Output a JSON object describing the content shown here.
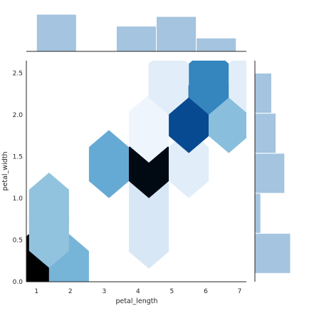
{
  "chart_data": {
    "type": "hexbin-joint",
    "title": "",
    "xlabel": "petal_length",
    "ylabel": "petal_width",
    "xlim": [
      0.7,
      7.2
    ],
    "ylim": [
      0.0,
      2.65
    ],
    "x_ticks": [
      1,
      2,
      3,
      4,
      5,
      6,
      7
    ],
    "y_ticks": [
      0.0,
      0.5,
      1.0,
      1.5,
      2.0,
      2.5
    ],
    "x_tick_labels": [
      "1",
      "2",
      "3",
      "4",
      "5",
      "6",
      "7"
    ],
    "y_tick_labels": [
      "0.0",
      "0.5",
      "1.0",
      "1.5",
      "2.0",
      "2.5"
    ],
    "hexbin": {
      "colormap": "Blues",
      "hex_width_data": 1.18,
      "hex_height_data": 0.815,
      "cells": [
        {
          "x": 0.78,
          "y": 0.165,
          "count": 1.0
        },
        {
          "x": 1.96,
          "y": 0.165,
          "count": 0.42
        },
        {
          "x": 1.37,
          "y": 0.575,
          "count": 0.36
        },
        {
          "x": 1.37,
          "y": 0.9,
          "count": 0.36
        },
        {
          "x": 4.32,
          "y": 0.565,
          "count": 0.14
        },
        {
          "x": 4.32,
          "y": 0.975,
          "count": 0.14
        },
        {
          "x": 3.14,
          "y": 1.41,
          "count": 0.46
        },
        {
          "x": 4.32,
          "y": 1.41,
          "count": 0.98
        },
        {
          "x": 5.5,
          "y": 1.41,
          "count": 0.1
        },
        {
          "x": 4.32,
          "y": 1.835,
          "count": 0.04
        },
        {
          "x": 5.5,
          "y": 1.95,
          "count": 0.8
        },
        {
          "x": 6.68,
          "y": 1.95,
          "count": 0.38
        },
        {
          "x": 4.9,
          "y": 2.41,
          "count": 0.1
        },
        {
          "x": 6.09,
          "y": 2.41,
          "count": 0.6
        },
        {
          "x": 7.27,
          "y": 2.41,
          "count": 0.1
        }
      ]
    },
    "top_marginal": {
      "type": "histogram",
      "bin_edges": [
        1.0,
        2.18,
        3.36,
        4.54,
        5.72,
        6.9
      ],
      "counts": [
        50,
        1,
        34,
        47,
        18
      ]
    },
    "right_marginal": {
      "type": "histogram",
      "bin_edges": [
        0.1,
        0.58,
        1.06,
        1.54,
        2.02,
        2.5
      ],
      "counts": [
        49,
        8,
        41,
        29,
        23
      ]
    },
    "colors": {
      "marginal_fill": "#a4c4df",
      "marginal_stroke": "#ffffff",
      "axis": "#262626",
      "background": "#ffffff"
    }
  }
}
